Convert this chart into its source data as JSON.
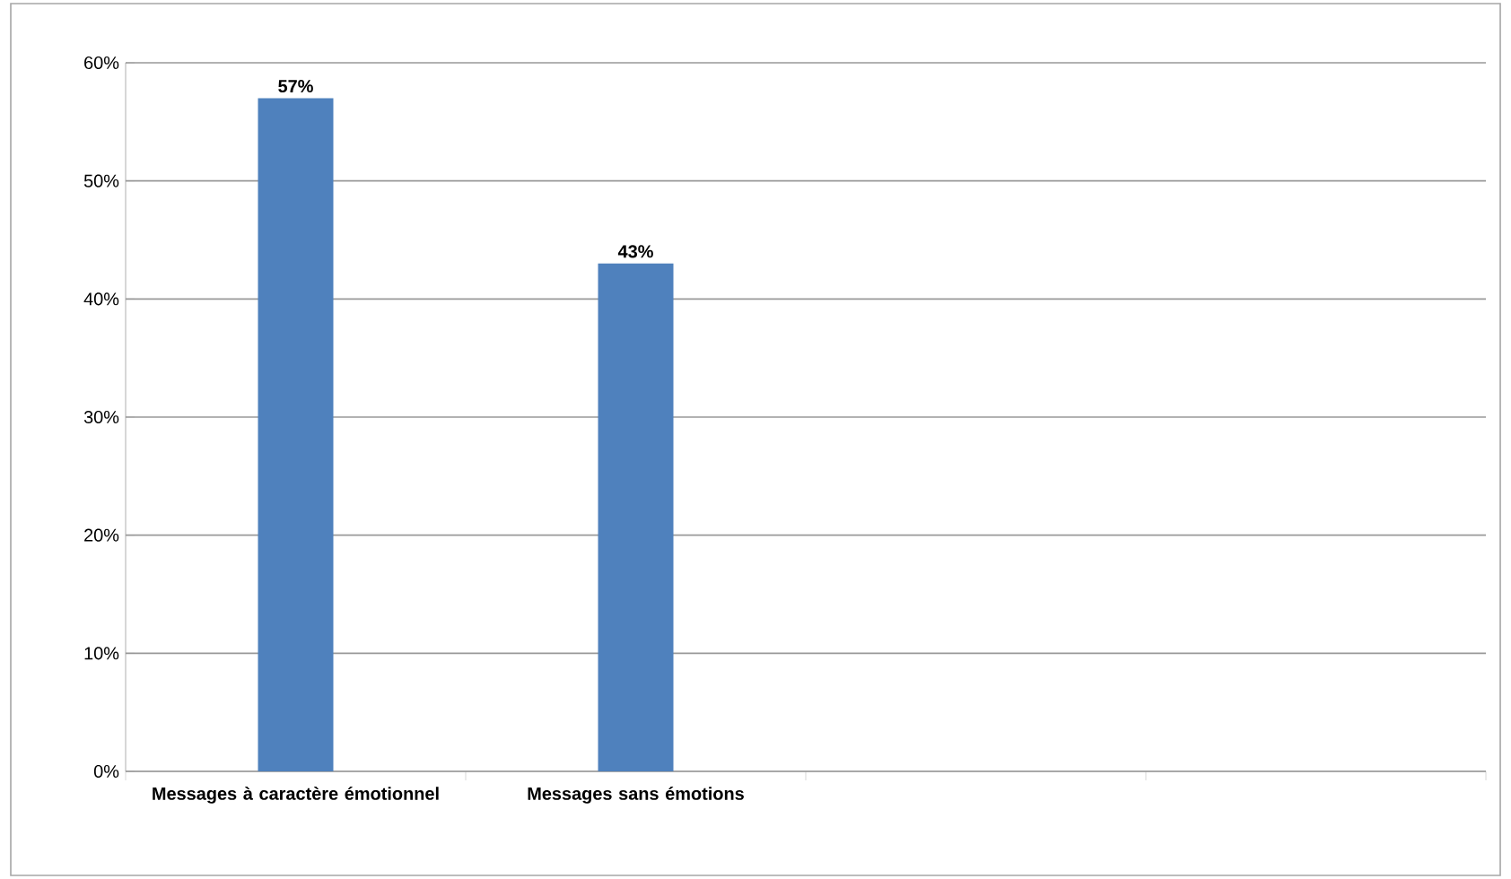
{
  "chart_data": {
    "type": "bar",
    "categories": [
      "Messages à caractère émotionnel",
      "Messages sans émotions",
      null,
      null
    ],
    "values": [
      57,
      43,
      null,
      null
    ],
    "value_labels": [
      "57%",
      "43%",
      null,
      null
    ],
    "color": "#4f81bd",
    "ylim": [
      0,
      60
    ],
    "yticks": [
      {
        "value": 0,
        "label": "0%"
      },
      {
        "value": 10,
        "label": "10%"
      },
      {
        "value": 20,
        "label": "20%"
      },
      {
        "value": 30,
        "label": "30%"
      },
      {
        "value": 40,
        "label": "40%"
      },
      {
        "value": 50,
        "label": "50%"
      },
      {
        "value": 60,
        "label": "60%"
      }
    ],
    "grid": "y"
  }
}
